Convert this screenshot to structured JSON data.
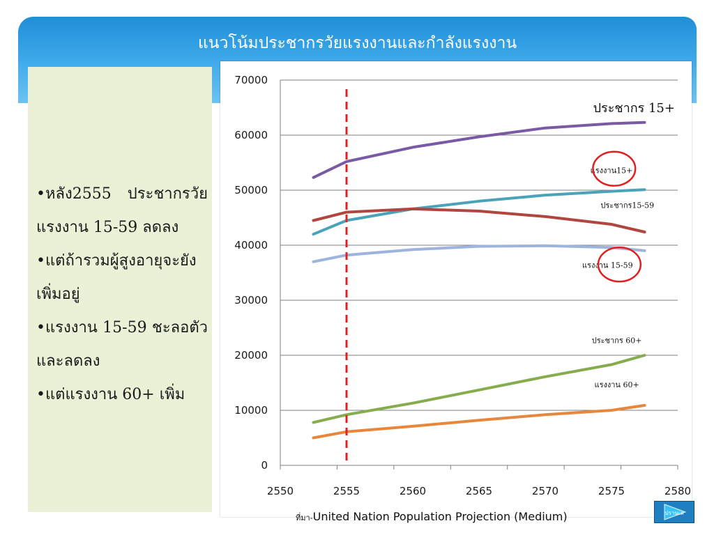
{
  "slide": {
    "title": "แนวโน้มประชากรวัยแรงงานและกำลังแรงงาน",
    "bullets": [
      "•หลัง2555 ประชากรวัยแรงงาน 15-59 ลดลง",
      "•แต่ถ้ารวมผู้สูงอายุจะยังเพิ่มอยู่",
      "•แรงงาน 15-59 ชะลอตัว และลดลง",
      "•แต่แรงงาน 60+ เพิ่ม"
    ],
    "source_prefix": "ที่มา-",
    "source_text": "United Nation Population Projection (Medium)",
    "next_label": "ปรานเล",
    "colors": {
      "banner": "#2b9ae0",
      "left_panel": "#ebf1d7",
      "marker_line": "#e02020",
      "circle": "#e02020"
    }
  },
  "chart_data": {
    "type": "line",
    "x": [
      2552.5,
      2555,
      2560,
      2565,
      2570,
      2575,
      2577.5
    ],
    "xticks": [
      2550,
      2555,
      2560,
      2565,
      2570,
      2575,
      2580
    ],
    "xlim": [
      2550,
      2580
    ],
    "ylim": [
      0,
      70000
    ],
    "yticks": [
      0,
      10000,
      20000,
      30000,
      40000,
      50000,
      60000,
      70000
    ],
    "grid": true,
    "vertical_marker": {
      "x": 2555,
      "color": "#e02020",
      "style": "dashed"
    },
    "series": [
      {
        "color": "#7a5aa5",
        "values": [
          52300,
          55200,
          57800,
          59700,
          61300,
          62100,
          62300
        ]
      },
      {
        "color": "#4aa3b8",
        "values": [
          42000,
          44500,
          46600,
          48000,
          49100,
          49800,
          50100
        ]
      },
      {
        "color": "#b0463f",
        "values": [
          44500,
          46000,
          46600,
          46200,
          45200,
          43800,
          42400
        ]
      },
      {
        "color": "#9db5dc",
        "values": [
          37000,
          38200,
          39200,
          39800,
          39900,
          39600,
          39000
        ]
      },
      {
        "color": "#86ad4d",
        "values": [
          7800,
          9200,
          11300,
          13700,
          16100,
          18300,
          20000
        ]
      },
      {
        "color": "#e7873c",
        "values": [
          5000,
          6100,
          7100,
          8200,
          9200,
          10000,
          10900
        ]
      }
    ],
    "annotations": [
      {
        "text": "ประชากร 15+",
        "x": 2576.7,
        "y": 64200,
        "size": 18
      },
      {
        "text": "แรงงาน15+",
        "x": 2575,
        "y": 53100,
        "size": 11
      },
      {
        "text": "ประชากร15-59",
        "x": 2576.2,
        "y": 46800,
        "size": 11
      },
      {
        "text": "แรงงาน 15-59",
        "x": 2574.7,
        "y": 35900,
        "size": 11
      },
      {
        "text": "ประชากร 60+",
        "x": 2575.4,
        "y": 22200,
        "size": 11
      },
      {
        "text": "แรงงาน 60+",
        "x": 2575.4,
        "y": 14200,
        "size": 11
      }
    ],
    "circled_labels": [
      {
        "label": "แรงงาน15+",
        "cx": 2575.2,
        "cy": 53900,
        "rx": 1.6,
        "ry": 3100
      },
      {
        "label": "แรงงาน 15-59",
        "cx": 2575.6,
        "cy": 36500,
        "rx": 1.6,
        "ry": 3100
      }
    ]
  }
}
